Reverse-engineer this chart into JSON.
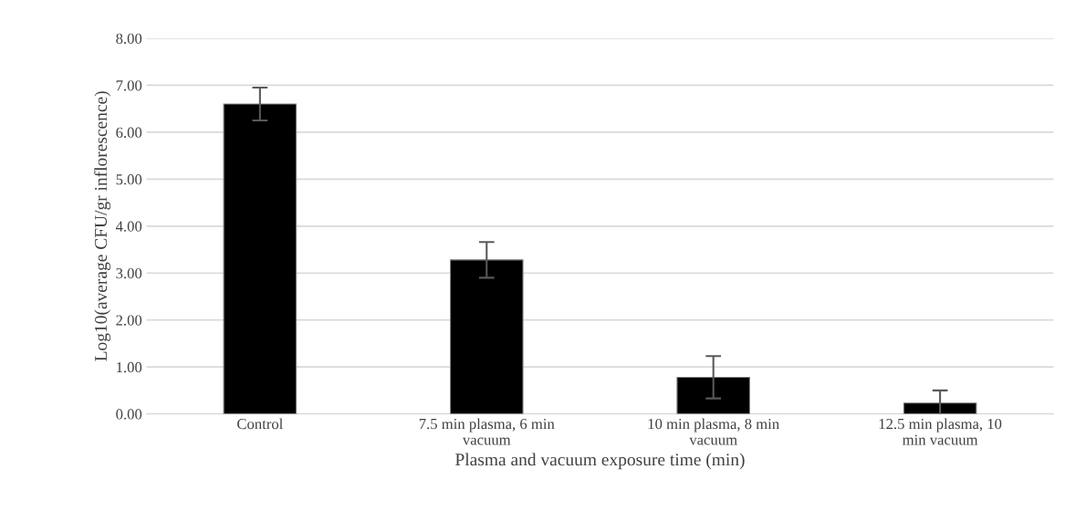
{
  "chart_data": {
    "type": "bar",
    "xlabel": "Plasma and vacuum exposure time (min)",
    "ylabel": "Log10(average CFU/gr inflorescence)",
    "categories": [
      "Control",
      "7.5 min plasma, 6 min\nvacuum",
      "10 min plasma, 8 min\nvacuum",
      "12.5 min plasma, 10\nmin vacuum"
    ],
    "values": [
      6.6,
      3.28,
      0.78,
      0.23
    ],
    "errors": [
      0.35,
      0.38,
      0.45,
      0.27
    ],
    "color": "#000000",
    "ylim": [
      0,
      8
    ],
    "yticks": [
      {
        "value": 0,
        "label": "0.00"
      },
      {
        "value": 1,
        "label": "1.00"
      },
      {
        "value": 2,
        "label": "2.00"
      },
      {
        "value": 3,
        "label": "3.00"
      },
      {
        "value": 4,
        "label": "4.00"
      },
      {
        "value": 5,
        "label": "5.00"
      },
      {
        "value": 6,
        "label": "6.00"
      },
      {
        "value": 7,
        "label": "7.00"
      },
      {
        "value": 8,
        "label": "8.00"
      }
    ],
    "grid": "y"
  }
}
